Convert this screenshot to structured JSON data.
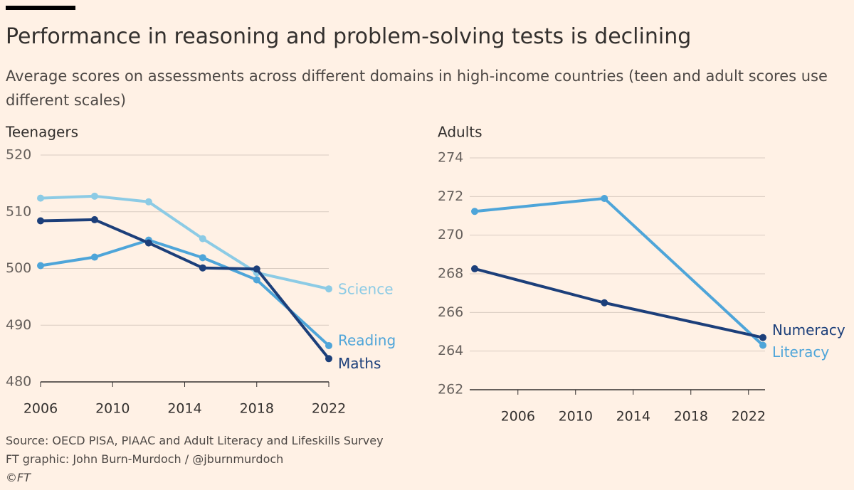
{
  "title": "Performance in reasoning and problem-solving tests is declining",
  "subtitle": "Average scores on assessments across different domains in high-income countries (teen and adult scores use different scales)",
  "notes": [
    "Source: OECD PISA, PIAAC and Adult Literacy and Lifeskills Survey",
    "FT graphic: John Burn-Murdoch / @jburnmurdoch",
    "©FT"
  ],
  "chart_data": [
    {
      "type": "line",
      "title": "Teenagers",
      "x": [
        2006,
        2009,
        2012,
        2015,
        2018,
        2022
      ],
      "xlim": [
        2006,
        2022
      ],
      "xticks": [
        2006,
        2010,
        2014,
        2018,
        2022
      ],
      "ylim": [
        480,
        520
      ],
      "yticks": [
        480,
        490,
        500,
        510,
        520
      ],
      "grid": true,
      "series": [
        {
          "name": "Science",
          "color": "#8ccbe5",
          "values": [
            512.4,
            512.75,
            511.75,
            505.25,
            499.25,
            496.4
          ]
        },
        {
          "name": "Reading",
          "color": "#4ea5d9",
          "values": [
            500.5,
            502,
            505,
            501.9,
            498,
            486.4
          ]
        },
        {
          "name": "Maths",
          "color": "#1c3f7a",
          "values": [
            508.4,
            508.6,
            504.5,
            500.1,
            499.9,
            484.1
          ]
        }
      ]
    },
    {
      "type": "line",
      "title": "Adults",
      "x": [
        2003,
        2012,
        2023
      ],
      "xlim": [
        2003,
        2023
      ],
      "xticks": [
        2006,
        2010,
        2014,
        2018,
        2022
      ],
      "ylim": [
        262,
        274
      ],
      "yticks": [
        262,
        264,
        266,
        268,
        270,
        272,
        274
      ],
      "grid": true,
      "series": [
        {
          "name": "Literacy",
          "color": "#4ea5d9",
          "values": [
            271.23,
            271.9,
            264.3
          ]
        },
        {
          "name": "Numeracy",
          "color": "#1c3f7a",
          "values": [
            268.26,
            266.5,
            264.7
          ]
        }
      ]
    }
  ]
}
